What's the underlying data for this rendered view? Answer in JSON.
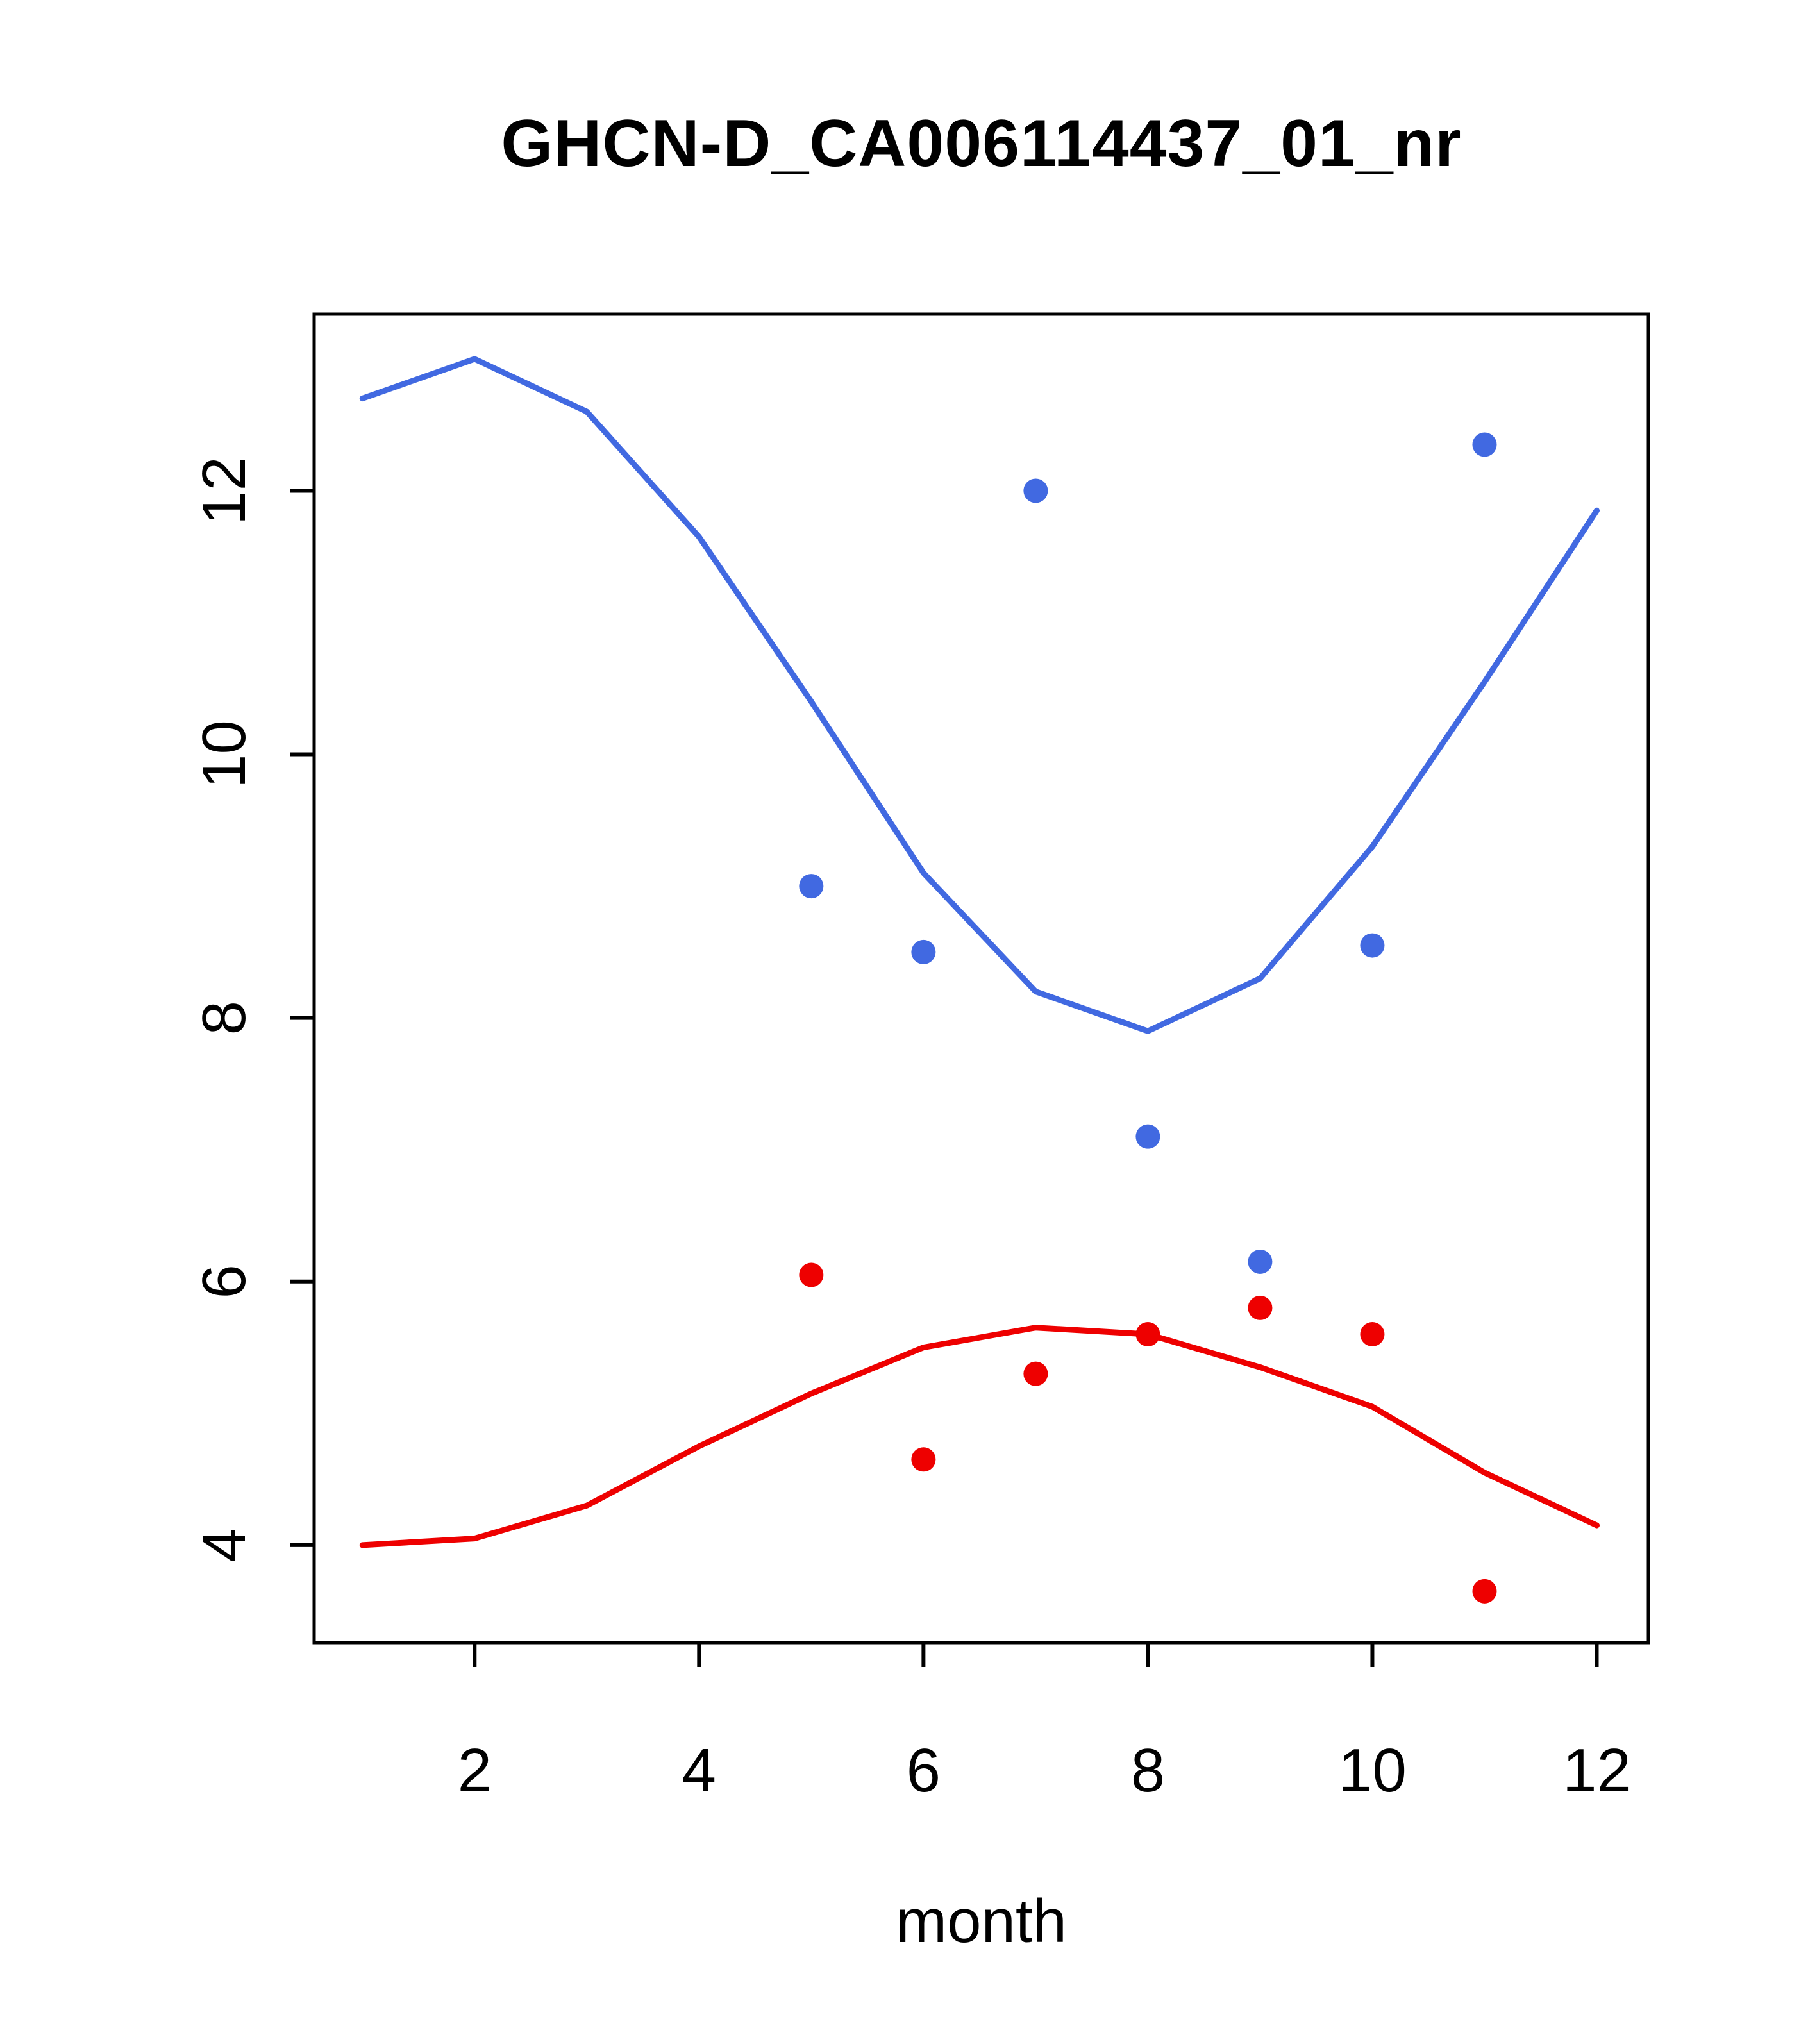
{
  "chart_data": {
    "type": "line",
    "title": "GHCN-D_CA006114437_01_nr",
    "xlabel": "month",
    "ylabel": "",
    "xlim": [
      0.57,
      12.46
    ],
    "ylim": [
      3.26,
      13.34
    ],
    "xticks": [
      2,
      4,
      6,
      8,
      10,
      12
    ],
    "yticks": [
      4,
      6,
      8,
      10,
      12
    ],
    "grid": false,
    "legend": null,
    "colors": {
      "blue": "#4169E1",
      "red": "#EE0000",
      "axis": "#000000"
    },
    "series": [
      {
        "name": "blue-curve",
        "kind": "line",
        "color": "#4169E1",
        "x": [
          1,
          2,
          3,
          4,
          5,
          6,
          7,
          8,
          9,
          10,
          11,
          12
        ],
        "y": [
          12.7,
          13.0,
          12.6,
          11.65,
          10.4,
          9.1,
          8.2,
          7.9,
          8.3,
          9.3,
          10.55,
          11.85
        ]
      },
      {
        "name": "red-curve",
        "kind": "line",
        "color": "#EE0000",
        "x": [
          1,
          2,
          3,
          4,
          5,
          6,
          7,
          8,
          9,
          10,
          11,
          12
        ],
        "y": [
          4.0,
          4.05,
          4.3,
          4.75,
          5.15,
          5.5,
          5.65,
          5.6,
          5.35,
          5.05,
          4.55,
          4.15
        ]
      },
      {
        "name": "blue-points",
        "kind": "scatter",
        "color": "#4169E1",
        "x": [
          5,
          6,
          7,
          8,
          9,
          10,
          11
        ],
        "y": [
          9.0,
          8.5,
          12.0,
          7.1,
          6.15,
          8.55,
          12.35
        ]
      },
      {
        "name": "red-points",
        "kind": "scatter",
        "color": "#EE0000",
        "x": [
          5,
          6,
          7,
          8,
          9,
          10,
          11
        ],
        "y": [
          6.05,
          4.65,
          5.3,
          5.6,
          5.8,
          5.6,
          3.65
        ]
      }
    ]
  }
}
